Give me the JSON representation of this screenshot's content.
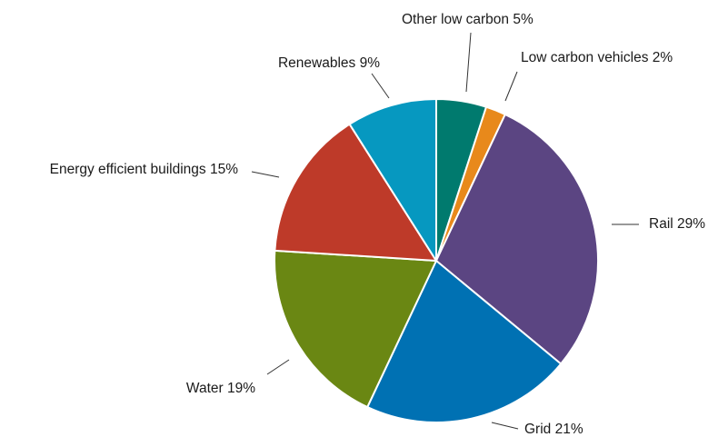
{
  "chart_data": {
    "type": "pie",
    "title": "",
    "slices": [
      {
        "name": "Other low carbon",
        "value": 5,
        "label": "Other low carbon 5%",
        "color": "#007a6e"
      },
      {
        "name": "Low carbon vehicles",
        "value": 2,
        "label": "Low carbon vehicles 2%",
        "color": "#e8891b"
      },
      {
        "name": "Rail",
        "value": 29,
        "label": "Rail 29%",
        "color": "#5b4582"
      },
      {
        "name": "Grid",
        "value": 21,
        "label": "Grid 21%",
        "color": "#0071b3"
      },
      {
        "name": "Water",
        "value": 19,
        "label": "Water 19%",
        "color": "#6a8713"
      },
      {
        "name": "Energy efficient buildings",
        "value": 15,
        "label": "Energy efficient buildings 15%",
        "color": "#be3a29"
      },
      {
        "name": "Renewables",
        "value": 9,
        "label": "Renewables 9%",
        "color": "#0698c0"
      }
    ],
    "start": "12 o'clock",
    "direction": "clockwise",
    "legend": "none",
    "labels": "outside with leader lines"
  }
}
